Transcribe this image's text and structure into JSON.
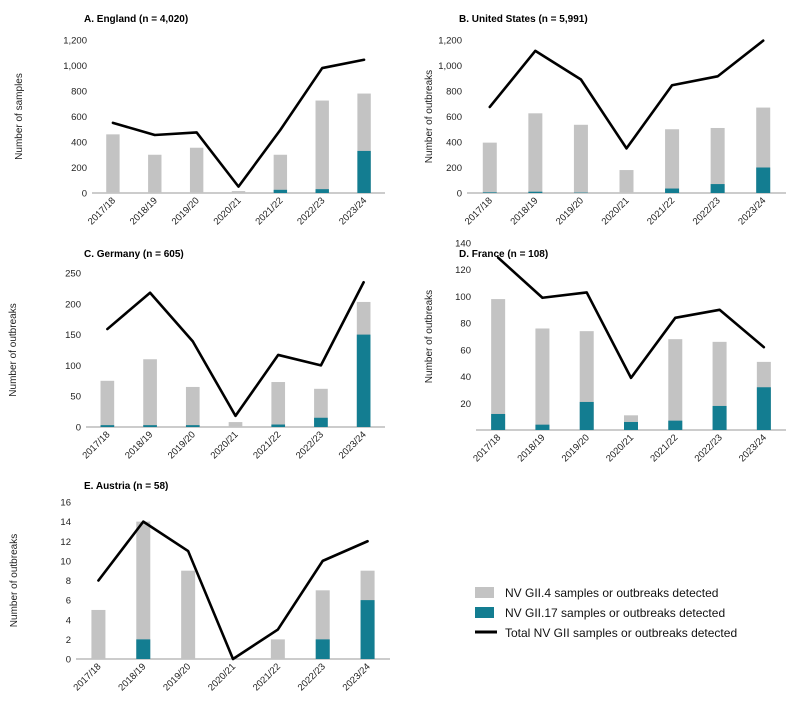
{
  "colors": {
    "gii4": "#c3c3c3",
    "gii17": "#137d91",
    "total": "#000000",
    "axis": "#999999"
  },
  "legend": {
    "gii4": "NV GII.4 samples or outbreaks detected",
    "gii17": "NV GII.17 samples or outbreaks detected",
    "total": "Total NV GII samples or outbreaks detected"
  },
  "chart_data": [
    {
      "type": "bar",
      "id": "A",
      "title": "A. England (n = 4,020)",
      "ylabel": "Number of samples",
      "categories": [
        "2017/18",
        "2018/19",
        "2019/20",
        "2020/21",
        "2021/22",
        "2022/23",
        "2023/24"
      ],
      "yticks": [
        "0",
        "200",
        "400",
        "600",
        "800",
        "1,000",
        "1,200"
      ],
      "ylim": [
        0,
        1200
      ],
      "series": [
        {
          "name": "NV GII.4 samples or outbreaks detected",
          "kind": "bar-stacked-top",
          "values": [
            460,
            300,
            355,
            15,
            300,
            725,
            780
          ]
        },
        {
          "name": "NV GII.17 samples or outbreaks detected",
          "kind": "bar-stacked-bottom",
          "values": [
            0,
            0,
            0,
            0,
            25,
            30,
            330
          ]
        },
        {
          "name": "Total NV GII samples or outbreaks detected",
          "kind": "line",
          "values": [
            550,
            455,
            475,
            50,
            495,
            980,
            1045
          ]
        }
      ]
    },
    {
      "type": "bar",
      "id": "B",
      "title": "B. United States (n = 5,991)",
      "ylabel": "Number of outbreaks",
      "categories": [
        "2017/18",
        "2018/19",
        "2019/20",
        "2020/21",
        "2021/22",
        "2022/23",
        "2023/24"
      ],
      "yticks": [
        "0",
        "200",
        "400",
        "600",
        "800",
        "1,000",
        "1,200"
      ],
      "ylim": [
        0,
        1200
      ],
      "series": [
        {
          "name": "NV GII.4 samples or outbreaks detected",
          "kind": "bar-stacked-top",
          "values": [
            395,
            625,
            535,
            180,
            500,
            510,
            670
          ]
        },
        {
          "name": "NV GII.17 samples or outbreaks detected",
          "kind": "bar-stacked-bottom",
          "values": [
            5,
            10,
            3,
            0,
            35,
            70,
            200
          ]
        },
        {
          "name": "Total NV GII samples or outbreaks detected",
          "kind": "line",
          "values": [
            675,
            1115,
            890,
            350,
            845,
            915,
            1195
          ]
        }
      ]
    },
    {
      "type": "bar",
      "id": "C",
      "title": "C. Germany (n = 605)",
      "ylabel": "Number of outbreaks",
      "categories": [
        "2017/18",
        "2018/19",
        "2019/20",
        "2020/21",
        "2021/22",
        "2022/23",
        "2023/24"
      ],
      "yticks": [
        "0",
        "50",
        "100",
        "150",
        "200",
        "250"
      ],
      "ylim": [
        0,
        250
      ],
      "series": [
        {
          "name": "NV GII.4 samples or outbreaks detected",
          "kind": "bar-stacked-top",
          "values": [
            75,
            110,
            65,
            8,
            73,
            62,
            203
          ]
        },
        {
          "name": "NV GII.17 samples or outbreaks detected",
          "kind": "bar-stacked-bottom",
          "values": [
            3,
            3,
            3,
            0,
            4,
            15,
            150
          ]
        },
        {
          "name": "Total NV GII samples or outbreaks detected",
          "kind": "line",
          "values": [
            159,
            218,
            139,
            18,
            117,
            100,
            235
          ]
        }
      ]
    },
    {
      "type": "bar",
      "id": "D",
      "title": "D. France (n = 108)",
      "ylabel": "Number of outbreaks",
      "categories": [
        "2017/18",
        "2018/19",
        "2019/20",
        "2020/21",
        "2021/22",
        "2022/23",
        "2023/24"
      ],
      "yticks": [
        "20",
        "40",
        "60",
        "80",
        "100",
        "120",
        "140"
      ],
      "ylim": [
        0,
        140
      ],
      "series": [
        {
          "name": "NV GII.4 samples or outbreaks detected",
          "kind": "bar-stacked-top",
          "values": [
            98,
            76,
            74,
            11,
            68,
            66,
            51
          ]
        },
        {
          "name": "NV GII.17 samples or outbreaks detected",
          "kind": "bar-stacked-bottom",
          "values": [
            12,
            4,
            21,
            6,
            7,
            18,
            32
          ]
        },
        {
          "name": "Total NV GII samples or outbreaks detected",
          "kind": "line",
          "values": [
            129,
            99,
            103,
            39,
            84,
            90,
            62
          ]
        }
      ]
    },
    {
      "type": "bar",
      "id": "E",
      "title": "E. Austria (n = 58)",
      "ylabel": "Number of outbreaks",
      "categories": [
        "2017/18",
        "2018/19",
        "2019/20",
        "2020/21",
        "2021/22",
        "2022/23",
        "2023/24"
      ],
      "yticks": [
        "0",
        "2",
        "4",
        "6",
        "8",
        "10",
        "12",
        "14",
        "16"
      ],
      "ylim": [
        0,
        16
      ],
      "series": [
        {
          "name": "NV GII.4 samples or outbreaks detected",
          "kind": "bar-stacked-top",
          "values": [
            5,
            14,
            9,
            0,
            2,
            7,
            9
          ]
        },
        {
          "name": "NV GII.17 samples or outbreaks detected",
          "kind": "bar-stacked-bottom",
          "values": [
            0,
            2,
            0,
            0,
            0,
            2,
            6
          ]
        },
        {
          "name": "Total NV GII samples or outbreaks detected",
          "kind": "line",
          "values": [
            8,
            14,
            11,
            0,
            3,
            10,
            12
          ]
        }
      ]
    }
  ]
}
